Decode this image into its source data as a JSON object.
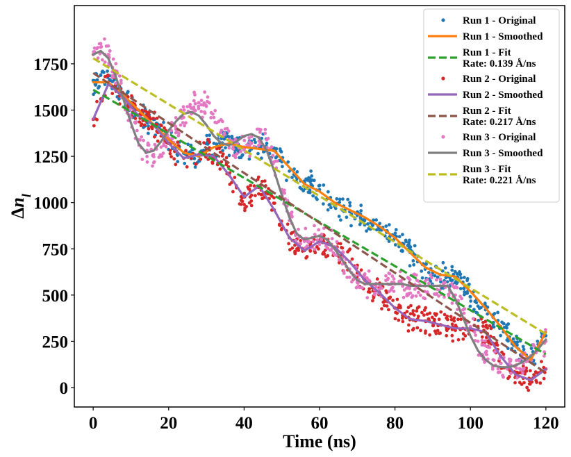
{
  "chart_data": {
    "type": "line",
    "title": "",
    "xlabel": "Time (ns)",
    "ylabel": "Δn_l",
    "xlim": [
      -5,
      125
    ],
    "ylim": [
      -105,
      2065
    ],
    "xticks": [
      "0",
      "20",
      "40",
      "60",
      "80",
      "100",
      "120"
    ],
    "xtick_values": [
      0,
      20,
      40,
      60,
      80,
      100,
      120
    ],
    "yticks": [
      "0",
      "250",
      "500",
      "750",
      "1000",
      "1250",
      "1500",
      "1750"
    ],
    "ytick_values": [
      0,
      250,
      500,
      750,
      1000,
      1250,
      1500,
      1750
    ],
    "grid": false,
    "legend_position": "top-right",
    "series": [
      {
        "name": "Run 1 - Original",
        "kind": "scatter",
        "color": "#1f77b4",
        "x": [
          0,
          2,
          4,
          6,
          8,
          10,
          12,
          14,
          16,
          18,
          20,
          22,
          24,
          26,
          28,
          30,
          32,
          34,
          36,
          38,
          40,
          42,
          44,
          46,
          48,
          50,
          52,
          54,
          56,
          58,
          60,
          62,
          64,
          66,
          68,
          70,
          72,
          74,
          76,
          78,
          80,
          82,
          84,
          86,
          88,
          90,
          92,
          94,
          96,
          98,
          100,
          102,
          104,
          106,
          108,
          110,
          112,
          114,
          116,
          118,
          120
        ],
        "y": [
          1660,
          1690,
          1650,
          1620,
          1580,
          1540,
          1500,
          1460,
          1420,
          1380,
          1340,
          1300,
          1270,
          1250,
          1250,
          1290,
          1320,
          1320,
          1310,
          1300,
          1290,
          1290,
          1300,
          1320,
          1280,
          1220,
          1170,
          1130,
          1110,
          1090,
          1070,
          1020,
          980,
          960,
          950,
          930,
          910,
          880,
          860,
          840,
          820,
          780,
          730,
          680,
          640,
          620,
          610,
          600,
          590,
          570,
          490,
          440,
          420,
          380,
          330,
          270,
          230,
          190,
          160,
          210,
          280
        ]
      },
      {
        "name": "Run 1 - Smoothed",
        "kind": "line",
        "color": "#ff7f0e",
        "x": [
          0,
          4,
          8,
          12,
          16,
          20,
          24,
          28,
          32,
          36,
          40,
          44,
          48,
          52,
          56,
          60,
          64,
          68,
          72,
          76,
          80,
          84,
          88,
          92,
          96,
          100,
          104,
          108,
          112,
          116,
          120
        ],
        "y": [
          1650,
          1650,
          1580,
          1500,
          1420,
          1340,
          1270,
          1250,
          1300,
          1320,
          1300,
          1290,
          1280,
          1190,
          1100,
          1060,
          1000,
          960,
          920,
          870,
          810,
          730,
          650,
          610,
          600,
          520,
          430,
          330,
          220,
          150,
          300
        ]
      },
      {
        "name": "Run 1 - Fit\nRate: 0.139 Å/ns",
        "kind": "dashed",
        "color": "#2ca02c",
        "x": [
          0,
          120
        ],
        "y": [
          1610,
          180
        ]
      },
      {
        "name": "Run 2 - Original",
        "kind": "scatter",
        "color": "#d62728",
        "x": [
          0,
          2,
          4,
          6,
          8,
          10,
          12,
          14,
          16,
          18,
          20,
          22,
          24,
          26,
          28,
          30,
          32,
          34,
          36,
          38,
          40,
          42,
          44,
          46,
          48,
          50,
          52,
          54,
          56,
          58,
          60,
          62,
          64,
          66,
          68,
          70,
          72,
          74,
          76,
          78,
          80,
          82,
          84,
          86,
          88,
          90,
          92,
          94,
          96,
          98,
          100,
          102,
          104,
          106,
          108,
          110,
          112,
          114,
          116,
          118,
          120
        ],
        "y": [
          1450,
          1560,
          1650,
          1640,
          1570,
          1520,
          1470,
          1440,
          1420,
          1360,
          1320,
          1280,
          1240,
          1240,
          1260,
          1280,
          1250,
          1220,
          1150,
          1080,
          1030,
          1040,
          1090,
          1050,
          960,
          860,
          810,
          750,
          740,
          760,
          790,
          780,
          760,
          700,
          680,
          620,
          580,
          540,
          510,
          470,
          430,
          390,
          370,
          370,
          360,
          350,
          340,
          330,
          320,
          320,
          320,
          330,
          300,
          240,
          170,
          100,
          70,
          50,
          40,
          80,
          100
        ]
      },
      {
        "name": "Run 2 - Smoothed",
        "kind": "line",
        "color": "#9467bd",
        "x": [
          0,
          4,
          8,
          12,
          16,
          20,
          24,
          28,
          32,
          36,
          40,
          44,
          48,
          52,
          56,
          60,
          64,
          68,
          72,
          76,
          80,
          84,
          88,
          92,
          96,
          100,
          104,
          108,
          112,
          116,
          120
        ],
        "y": [
          1450,
          1640,
          1570,
          1470,
          1420,
          1320,
          1240,
          1260,
          1250,
          1150,
          1030,
          1090,
          960,
          810,
          740,
          790,
          760,
          680,
          580,
          510,
          430,
          370,
          360,
          340,
          320,
          320,
          300,
          170,
          70,
          40,
          100
        ]
      },
      {
        "name": "Run 2 - Fit\nRate: 0.217 Å/ns",
        "kind": "dashed",
        "color": "#8c564b",
        "x": [
          0,
          120
        ],
        "y": [
          1700,
          80
        ]
      },
      {
        "name": "Run 3 - Original",
        "kind": "scatter",
        "color": "#e377c2",
        "x": [
          0,
          2,
          4,
          6,
          8,
          10,
          12,
          14,
          16,
          18,
          20,
          22,
          24,
          26,
          28,
          30,
          32,
          34,
          36,
          38,
          40,
          42,
          44,
          46,
          48,
          50,
          52,
          54,
          56,
          58,
          60,
          62,
          64,
          66,
          68,
          70,
          72,
          74,
          76,
          78,
          80,
          82,
          84,
          86,
          88,
          90,
          92,
          94,
          96,
          98,
          100,
          102,
          104,
          106,
          108,
          110,
          112,
          114,
          116,
          118,
          120
        ],
        "y": [
          1800,
          1840,
          1800,
          1700,
          1580,
          1460,
          1340,
          1270,
          1260,
          1300,
          1340,
          1400,
          1460,
          1510,
          1540,
          1520,
          1460,
          1390,
          1340,
          1310,
          1300,
          1320,
          1350,
          1340,
          1220,
          1070,
          940,
          830,
          790,
          810,
          820,
          800,
          760,
          700,
          640,
          580,
          560,
          550,
          550,
          560,
          560,
          560,
          550,
          550,
          550,
          550,
          550,
          550,
          500,
          420,
          330,
          250,
          190,
          150,
          130,
          120,
          120,
          130,
          160,
          200,
          250
        ]
      },
      {
        "name": "Run 3 - Smoothed",
        "kind": "line",
        "color": "#7f7f7f",
        "x": [
          0,
          2,
          4,
          6,
          8,
          10,
          12,
          14,
          16,
          18,
          20,
          22,
          24,
          26,
          28,
          30,
          32,
          34,
          36,
          38,
          40,
          42,
          44,
          46,
          48,
          50,
          52,
          54,
          56,
          58,
          60,
          62,
          64,
          66,
          68,
          70,
          72,
          74,
          76,
          78,
          80,
          82,
          84,
          86,
          88,
          90,
          92,
          94,
          96,
          98,
          100,
          102,
          104,
          106,
          108,
          110,
          112,
          114,
          116,
          118,
          120
        ],
        "y": [
          1800,
          1820,
          1780,
          1680,
          1560,
          1430,
          1320,
          1270,
          1280,
          1330,
          1390,
          1440,
          1480,
          1490,
          1470,
          1420,
          1360,
          1320,
          1310,
          1330,
          1360,
          1370,
          1350,
          1280,
          1170,
          1040,
          920,
          830,
          800,
          810,
          820,
          800,
          750,
          690,
          630,
          580,
          560,
          560,
          560,
          560,
          560,
          560,
          550,
          550,
          550,
          550,
          550,
          550,
          480,
          380,
          280,
          200,
          150,
          120,
          110,
          110,
          120,
          140,
          170,
          210,
          260
        ]
      },
      {
        "name": "Run 3 - Fit\nRate: 0.221 Å/ns",
        "kind": "dashed",
        "color": "#bcbd22",
        "x": [
          0,
          120
        ],
        "y": [
          1780,
          290
        ]
      }
    ]
  }
}
